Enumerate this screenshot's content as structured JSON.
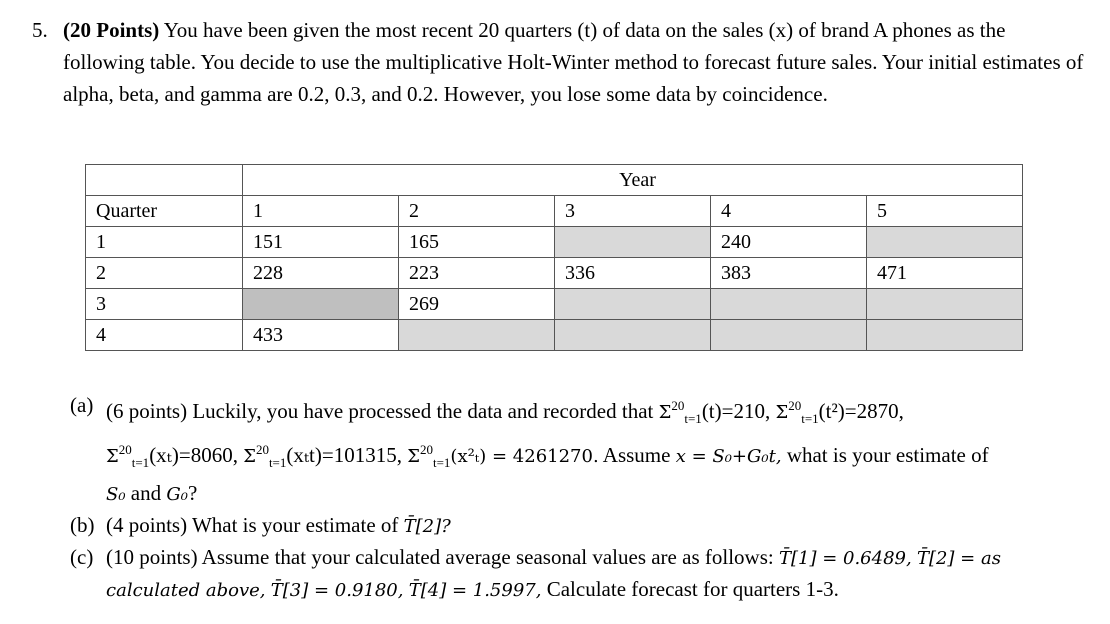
{
  "question": {
    "number": "5.",
    "points": "(20 Points)",
    "text": " You have been given the most recent 20 quarters (t) of data on the sales (x) of brand A phones as the following table. You decide to use the multiplicative Holt-Winter method to forecast future sales. Your initial estimates of alpha, beta, and gamma are 0.2, 0.3, and 0.2. However, you lose some data by coincidence."
  },
  "table": {
    "year_header": "Year",
    "quarter_header": "Quarter",
    "years": [
      "1",
      "2",
      "3",
      "4",
      "5"
    ],
    "rows": [
      {
        "quarter": "1",
        "values": [
          "151",
          "165",
          "",
          "240",
          ""
        ]
      },
      {
        "quarter": "2",
        "values": [
          "228",
          "223",
          "336",
          "383",
          "471"
        ]
      },
      {
        "quarter": "3",
        "values": [
          "",
          "269",
          "",
          "",
          ""
        ]
      },
      {
        "quarter": "4",
        "values": [
          "433",
          "",
          "",
          "",
          ""
        ]
      }
    ]
  },
  "parts": {
    "a": {
      "label": "(a)",
      "points": "(6 points) Luckily, you have processed the data and recorded that",
      "sum_t": "(t)=210,",
      "sum_t2": "(t²)=2870,",
      "sum_x": "(xₜ)=8060,",
      "sum_xt": "(xₜt)=101315,",
      "sum_x2": "(x²ₜ) = 4261270.",
      "assume": "Assume",
      "equation": "x = S₀+G₀t,",
      "tail": "what is your estimate of",
      "s0": "S₀",
      "and": "and",
      "g0": "G₀",
      "qmark": "?"
    },
    "b": {
      "label": "(b)",
      "text": "(4 points) What is your estimate of",
      "symbol": "T̄[2]?"
    },
    "c": {
      "label": "(c)",
      "text": "(10 points) Assume that your calculated average seasonal values are as follows:",
      "t1": "T̄[1] = 0.6489,",
      "t2": "T̄[2] = as calculated above,",
      "t3": "T̄[3] = 0.9180,",
      "t4": "T̄[4] = 1.5997,",
      "tail": "Calculate forecast for quarters 1-3."
    },
    "sum_symbol": "Σ",
    "sum_upper": "20",
    "sum_lower": "t=1"
  }
}
